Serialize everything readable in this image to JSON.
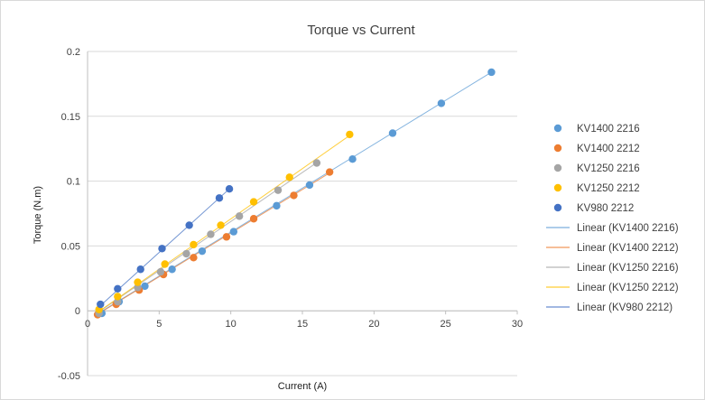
{
  "chart_data": {
    "type": "scatter",
    "title": "Torque vs Current",
    "xlabel": "Current (A)",
    "ylabel": "Torque (N.m)",
    "xlim": [
      0,
      30
    ],
    "ylim": [
      -0.05,
      0.2
    ],
    "xticks": [
      0,
      5,
      10,
      15,
      20,
      25,
      30
    ],
    "yticks": [
      -0.05,
      0,
      0.05,
      0.1,
      0.15,
      0.2
    ],
    "ytick_labels": [
      "-0.05",
      "0",
      "0.05",
      "0.1",
      "0.15",
      "0.2"
    ],
    "xtick_labels": [
      "0",
      "5",
      "10",
      "15",
      "20",
      "25",
      "30"
    ],
    "grid": "horizontal",
    "legend_position": "right",
    "series": [
      {
        "name": "KV1400 2216",
        "color": "#5b9bd5",
        "trendline_name": "Linear (KV1400 2216)",
        "x": [
          1.0,
          2.2,
          4.0,
          5.9,
          8.0,
          10.2,
          13.2,
          15.5,
          18.5,
          21.3,
          24.7,
          28.2
        ],
        "y": [
          -0.002,
          0.007,
          0.019,
          0.032,
          0.046,
          0.061,
          0.081,
          0.097,
          0.117,
          0.137,
          0.16,
          0.184
        ],
        "trend": [
          [
            0.6,
            -0.003
          ],
          [
            28.2,
            0.184
          ]
        ]
      },
      {
        "name": "KV1400 2212",
        "color": "#ed7d31",
        "trendline_name": "Linear (KV1400 2212)",
        "x": [
          0.7,
          2.0,
          3.6,
          5.3,
          7.4,
          9.7,
          11.6,
          14.4,
          16.9
        ],
        "y": [
          -0.003,
          0.005,
          0.016,
          0.028,
          0.041,
          0.057,
          0.071,
          0.089,
          0.107
        ],
        "trend": [
          [
            0.5,
            -0.004
          ],
          [
            17.0,
            0.107
          ]
        ]
      },
      {
        "name": "KV1250 2216",
        "color": "#a5a5a5",
        "trendline_name": "Linear (KV1250 2216)",
        "x": [
          0.8,
          2.1,
          3.5,
          5.1,
          6.9,
          8.6,
          10.6,
          13.3,
          16.0
        ],
        "y": [
          -0.002,
          0.007,
          0.018,
          0.03,
          0.044,
          0.059,
          0.073,
          0.093,
          0.114
        ],
        "trend": [
          [
            0.5,
            -0.003
          ],
          [
            16.1,
            0.115
          ]
        ]
      },
      {
        "name": "KV1250 2212",
        "color": "#ffc000",
        "trendline_name": "Linear (KV1250 2212)",
        "x": [
          0.8,
          2.1,
          3.5,
          5.4,
          7.4,
          9.3,
          11.6,
          14.1,
          18.3
        ],
        "y": [
          0.001,
          0.011,
          0.022,
          0.036,
          0.051,
          0.066,
          0.084,
          0.103,
          0.136
        ],
        "trend": [
          [
            0.6,
            -0.002
          ],
          [
            18.4,
            0.136
          ]
        ]
      },
      {
        "name": "KV980 2212",
        "color": "#4472c4",
        "trendline_name": "Linear (KV980 2212)",
        "x": [
          0.9,
          2.1,
          3.7,
          5.2,
          7.1,
          9.2,
          9.9
        ],
        "y": [
          0.005,
          0.017,
          0.032,
          0.048,
          0.066,
          0.087,
          0.094
        ],
        "trend": [
          [
            0.6,
            0.001
          ],
          [
            10.0,
            0.095
          ]
        ]
      }
    ]
  }
}
